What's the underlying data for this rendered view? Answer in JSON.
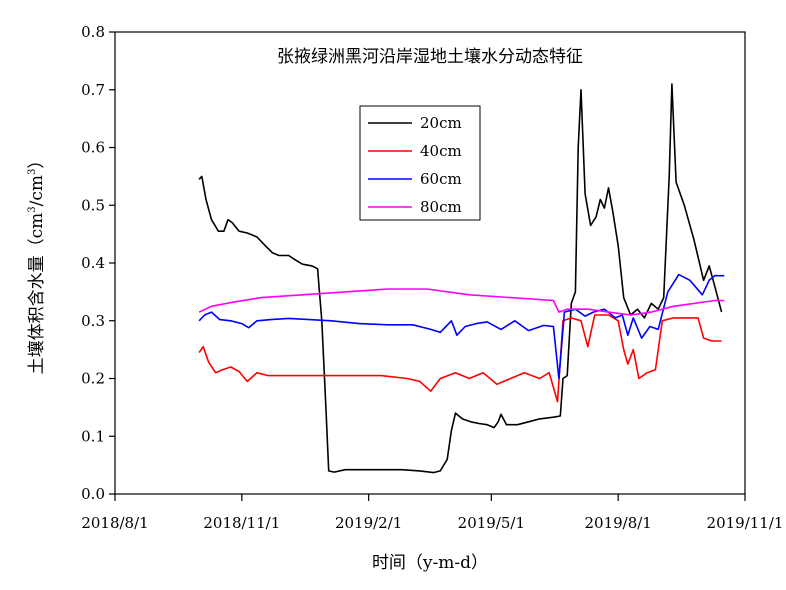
{
  "chart_data": {
    "type": "line",
    "title": "张掖绿洲黑河沿岸湿地土壤水分动态特征",
    "xlabel": "时间（y-m-d）",
    "ylabel": "土壤体积含水量（cm³/cm³）",
    "ylabel_parts": [
      "土壤体积含水量（cm",
      "3",
      "/cm",
      "3",
      "）"
    ],
    "xlim": [
      "2018-08-01",
      "2019-11-01"
    ],
    "ylim": [
      0,
      0.8
    ],
    "x_ticks": [
      "2018-08-01",
      "2018-11-01",
      "2019-02-01",
      "2019-05-01",
      "2019-08-01",
      "2019-11-01"
    ],
    "x_tick_labels": [
      "2018/8/1",
      "2018/11/1",
      "2019/2/1",
      "2019/5/1",
      "2019/8/1",
      "2019/11/1"
    ],
    "y_ticks": [
      0,
      0.1,
      0.2,
      0.3,
      0.4,
      0.5,
      0.6,
      0.7,
      0.8
    ],
    "y_tick_labels": [
      "0.0",
      "0.1",
      "0.2",
      "0.3",
      "0.4",
      "0.5",
      "0.6",
      "0.7",
      "0.8"
    ],
    "grid": false,
    "legend_position": "upper-center",
    "series": [
      {
        "name": "20cm",
        "color": "#000000",
        "points": [
          [
            "2018-10-01",
            0.545
          ],
          [
            "2018-10-03",
            0.55
          ],
          [
            "2018-10-06",
            0.51
          ],
          [
            "2018-10-10",
            0.475
          ],
          [
            "2018-10-15",
            0.455
          ],
          [
            "2018-10-19",
            0.455
          ],
          [
            "2018-10-22",
            0.475
          ],
          [
            "2018-10-25",
            0.47
          ],
          [
            "2018-10-30",
            0.455
          ],
          [
            "2018-11-05",
            0.452
          ],
          [
            "2018-11-12",
            0.445
          ],
          [
            "2018-11-18",
            0.43
          ],
          [
            "2018-11-23",
            0.418
          ],
          [
            "2018-11-28",
            0.413
          ],
          [
            "2018-12-05",
            0.413
          ],
          [
            "2018-12-10",
            0.405
          ],
          [
            "2018-12-15",
            0.398
          ],
          [
            "2018-12-22",
            0.395
          ],
          [
            "2018-12-26",
            0.39
          ],
          [
            "2018-12-29",
            0.3
          ],
          [
            "2019-01-01",
            0.15
          ],
          [
            "2019-01-03",
            0.04
          ],
          [
            "2019-01-07",
            0.038
          ],
          [
            "2019-01-15",
            0.042
          ],
          [
            "2019-01-25",
            0.042
          ],
          [
            "2019-02-10",
            0.042
          ],
          [
            "2019-02-25",
            0.042
          ],
          [
            "2019-03-10",
            0.04
          ],
          [
            "2019-03-20",
            0.037
          ],
          [
            "2019-03-25",
            0.04
          ],
          [
            "2019-03-30",
            0.06
          ],
          [
            "2019-04-02",
            0.11
          ],
          [
            "2019-04-05",
            0.14
          ],
          [
            "2019-04-10",
            0.13
          ],
          [
            "2019-04-16",
            0.125
          ],
          [
            "2019-04-22",
            0.122
          ],
          [
            "2019-04-28",
            0.12
          ],
          [
            "2019-05-03",
            0.115
          ],
          [
            "2019-05-06",
            0.125
          ],
          [
            "2019-05-08",
            0.138
          ],
          [
            "2019-05-12",
            0.12
          ],
          [
            "2019-05-20",
            0.12
          ],
          [
            "2019-05-28",
            0.125
          ],
          [
            "2019-06-05",
            0.13
          ],
          [
            "2019-06-15",
            0.133
          ],
          [
            "2019-06-20",
            0.135
          ],
          [
            "2019-06-22",
            0.2
          ],
          [
            "2019-06-25",
            0.205
          ],
          [
            "2019-06-28",
            0.33
          ],
          [
            "2019-07-01",
            0.35
          ],
          [
            "2019-07-03",
            0.6
          ],
          [
            "2019-07-05",
            0.7
          ],
          [
            "2019-07-08",
            0.52
          ],
          [
            "2019-07-12",
            0.465
          ],
          [
            "2019-07-16",
            0.48
          ],
          [
            "2019-07-19",
            0.51
          ],
          [
            "2019-07-22",
            0.495
          ],
          [
            "2019-07-25",
            0.53
          ],
          [
            "2019-07-28",
            0.49
          ],
          [
            "2019-08-01",
            0.43
          ],
          [
            "2019-08-05",
            0.34
          ],
          [
            "2019-08-10",
            0.31
          ],
          [
            "2019-08-15",
            0.32
          ],
          [
            "2019-08-20",
            0.305
          ],
          [
            "2019-08-25",
            0.33
          ],
          [
            "2019-08-30",
            0.32
          ],
          [
            "2019-09-03",
            0.34
          ],
          [
            "2019-09-07",
            0.55
          ],
          [
            "2019-09-09",
            0.71
          ],
          [
            "2019-09-12",
            0.54
          ],
          [
            "2019-09-18",
            0.5
          ],
          [
            "2019-09-25",
            0.44
          ],
          [
            "2019-10-02",
            0.37
          ],
          [
            "2019-10-06",
            0.395
          ],
          [
            "2019-10-10",
            0.36
          ],
          [
            "2019-10-15",
            0.315
          ]
        ]
      },
      {
        "name": "40cm",
        "color": "#ff0000",
        "points": [
          [
            "2018-10-01",
            0.245
          ],
          [
            "2018-10-04",
            0.255
          ],
          [
            "2018-10-08",
            0.228
          ],
          [
            "2018-10-13",
            0.21
          ],
          [
            "2018-10-18",
            0.215
          ],
          [
            "2018-10-24",
            0.22
          ],
          [
            "2018-10-30",
            0.212
          ],
          [
            "2018-11-05",
            0.195
          ],
          [
            "2018-11-12",
            0.21
          ],
          [
            "2018-11-20",
            0.205
          ],
          [
            "2018-12-01",
            0.205
          ],
          [
            "2018-12-15",
            0.205
          ],
          [
            "2019-01-01",
            0.205
          ],
          [
            "2019-01-20",
            0.205
          ],
          [
            "2019-02-10",
            0.205
          ],
          [
            "2019-03-01",
            0.2
          ],
          [
            "2019-03-10",
            0.195
          ],
          [
            "2019-03-18",
            0.178
          ],
          [
            "2019-03-25",
            0.2
          ],
          [
            "2019-04-05",
            0.21
          ],
          [
            "2019-04-15",
            0.2
          ],
          [
            "2019-04-25",
            0.21
          ],
          [
            "2019-05-05",
            0.19
          ],
          [
            "2019-05-15",
            0.2
          ],
          [
            "2019-05-25",
            0.21
          ],
          [
            "2019-06-05",
            0.2
          ],
          [
            "2019-06-12",
            0.21
          ],
          [
            "2019-06-18",
            0.16
          ],
          [
            "2019-06-22",
            0.3
          ],
          [
            "2019-06-28",
            0.305
          ],
          [
            "2019-07-05",
            0.3
          ],
          [
            "2019-07-10",
            0.255
          ],
          [
            "2019-07-15",
            0.31
          ],
          [
            "2019-07-25",
            0.31
          ],
          [
            "2019-08-01",
            0.3
          ],
          [
            "2019-08-05",
            0.25
          ],
          [
            "2019-08-08",
            0.225
          ],
          [
            "2019-08-12",
            0.25
          ],
          [
            "2019-08-16",
            0.2
          ],
          [
            "2019-08-22",
            0.21
          ],
          [
            "2019-08-28",
            0.215
          ],
          [
            "2019-09-02",
            0.3
          ],
          [
            "2019-09-10",
            0.305
          ],
          [
            "2019-09-20",
            0.305
          ],
          [
            "2019-09-28",
            0.305
          ],
          [
            "2019-10-02",
            0.27
          ],
          [
            "2019-10-08",
            0.265
          ],
          [
            "2019-10-15",
            0.265
          ]
        ]
      },
      {
        "name": "60cm",
        "color": "#0000ff",
        "points": [
          [
            "2018-10-01",
            0.3
          ],
          [
            "2018-10-05",
            0.31
          ],
          [
            "2018-10-10",
            0.315
          ],
          [
            "2018-10-16",
            0.302
          ],
          [
            "2018-10-24",
            0.3
          ],
          [
            "2018-11-01",
            0.295
          ],
          [
            "2018-11-06",
            0.288
          ],
          [
            "2018-11-12",
            0.3
          ],
          [
            "2018-11-22",
            0.302
          ],
          [
            "2018-12-05",
            0.304
          ],
          [
            "2018-12-20",
            0.302
          ],
          [
            "2019-01-05",
            0.3
          ],
          [
            "2019-01-25",
            0.295
          ],
          [
            "2019-02-15",
            0.293
          ],
          [
            "2019-03-05",
            0.293
          ],
          [
            "2019-03-18",
            0.285
          ],
          [
            "2019-03-25",
            0.28
          ],
          [
            "2019-04-02",
            0.3
          ],
          [
            "2019-04-06",
            0.275
          ],
          [
            "2019-04-12",
            0.29
          ],
          [
            "2019-04-20",
            0.295
          ],
          [
            "2019-04-28",
            0.298
          ],
          [
            "2019-05-08",
            0.285
          ],
          [
            "2019-05-18",
            0.3
          ],
          [
            "2019-05-28",
            0.283
          ],
          [
            "2019-06-08",
            0.292
          ],
          [
            "2019-06-15",
            0.29
          ],
          [
            "2019-06-19",
            0.2
          ],
          [
            "2019-06-23",
            0.315
          ],
          [
            "2019-07-01",
            0.32
          ],
          [
            "2019-07-08",
            0.308
          ],
          [
            "2019-07-14",
            0.315
          ],
          [
            "2019-07-22",
            0.32
          ],
          [
            "2019-07-30",
            0.305
          ],
          [
            "2019-08-04",
            0.31
          ],
          [
            "2019-08-08",
            0.275
          ],
          [
            "2019-08-12",
            0.305
          ],
          [
            "2019-08-18",
            0.27
          ],
          [
            "2019-08-24",
            0.29
          ],
          [
            "2019-08-30",
            0.285
          ],
          [
            "2019-09-06",
            0.35
          ],
          [
            "2019-09-14",
            0.38
          ],
          [
            "2019-09-22",
            0.37
          ],
          [
            "2019-10-01",
            0.345
          ],
          [
            "2019-10-06",
            0.37
          ],
          [
            "2019-10-10",
            0.378
          ],
          [
            "2019-10-17",
            0.378
          ]
        ]
      },
      {
        "name": "80cm",
        "color": "#ff00ff",
        "points": [
          [
            "2018-10-01",
            0.315
          ],
          [
            "2018-10-10",
            0.325
          ],
          [
            "2018-10-25",
            0.332
          ],
          [
            "2018-11-15",
            0.34
          ],
          [
            "2018-12-15",
            0.345
          ],
          [
            "2019-01-15",
            0.35
          ],
          [
            "2019-02-15",
            0.355
          ],
          [
            "2019-03-15",
            0.355
          ],
          [
            "2019-04-15",
            0.345
          ],
          [
            "2019-05-15",
            0.34
          ],
          [
            "2019-06-15",
            0.335
          ],
          [
            "2019-06-19",
            0.315
          ],
          [
            "2019-06-25",
            0.32
          ],
          [
            "2019-07-10",
            0.32
          ],
          [
            "2019-07-25",
            0.315
          ],
          [
            "2019-08-10",
            0.31
          ],
          [
            "2019-08-25",
            0.315
          ],
          [
            "2019-09-10",
            0.325
          ],
          [
            "2019-09-25",
            0.33
          ],
          [
            "2019-10-10",
            0.335
          ],
          [
            "2019-10-17",
            0.335
          ]
        ]
      }
    ]
  }
}
